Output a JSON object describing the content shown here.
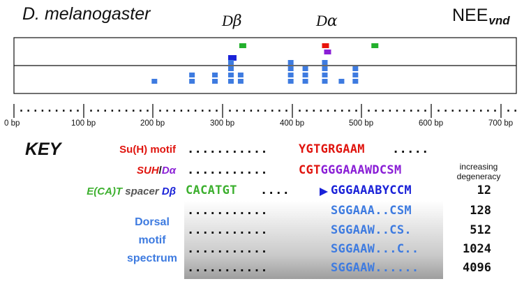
{
  "header": {
    "species": "D. melanogaster",
    "element": "NEE",
    "element_sub": "vnd",
    "d_beta": {
      "letter": "D",
      "greek": "β"
    },
    "d_alpha": {
      "letter": "D",
      "greek": "α"
    }
  },
  "sites": [
    {
      "pos": 324,
      "row": 0,
      "level": 0,
      "color": "#22b02c"
    },
    {
      "pos": 443,
      "row": 0,
      "level": 0,
      "color": "#e8140c"
    },
    {
      "pos": 514,
      "row": 0,
      "level": 0,
      "color": "#22b02c"
    },
    {
      "pos": 446,
      "row": 0,
      "level": 1,
      "color": "#8a1fd6"
    },
    {
      "pos": 308,
      "row": 0,
      "level": 2,
      "color": "#1a22d8"
    },
    {
      "pos": 198,
      "row": 1,
      "level": 3,
      "color": "#3e7be0"
    },
    {
      "pos": 252,
      "row": 1,
      "level": 2,
      "color": "#3e7be0"
    },
    {
      "pos": 252,
      "row": 1,
      "level": 3,
      "color": "#3e7be0"
    },
    {
      "pos": 285,
      "row": 1,
      "level": 2,
      "color": "#3e7be0"
    },
    {
      "pos": 285,
      "row": 1,
      "level": 3,
      "color": "#3e7be0"
    },
    {
      "pos": 308,
      "row": 1,
      "level": 0,
      "color": "#3e7be0"
    },
    {
      "pos": 308,
      "row": 1,
      "level": 1,
      "color": "#3e7be0"
    },
    {
      "pos": 308,
      "row": 1,
      "level": 2,
      "color": "#3e7be0"
    },
    {
      "pos": 308,
      "row": 1,
      "level": 3,
      "color": "#3e7be0"
    },
    {
      "pos": 322,
      "row": 1,
      "level": 2,
      "color": "#3e7be0"
    },
    {
      "pos": 322,
      "row": 1,
      "level": 3,
      "color": "#3e7be0"
    },
    {
      "pos": 394,
      "row": 1,
      "level": 0,
      "color": "#3e7be0"
    },
    {
      "pos": 394,
      "row": 1,
      "level": 1,
      "color": "#3e7be0"
    },
    {
      "pos": 394,
      "row": 1,
      "level": 2,
      "color": "#3e7be0"
    },
    {
      "pos": 394,
      "row": 1,
      "level": 3,
      "color": "#3e7be0"
    },
    {
      "pos": 415,
      "row": 1,
      "level": 1,
      "color": "#3e7be0"
    },
    {
      "pos": 415,
      "row": 1,
      "level": 2,
      "color": "#3e7be0"
    },
    {
      "pos": 415,
      "row": 1,
      "level": 3,
      "color": "#3e7be0"
    },
    {
      "pos": 443,
      "row": 1,
      "level": 0,
      "color": "#3e7be0"
    },
    {
      "pos": 443,
      "row": 1,
      "level": 1,
      "color": "#3e7be0"
    },
    {
      "pos": 443,
      "row": 1,
      "level": 2,
      "color": "#3e7be0"
    },
    {
      "pos": 443,
      "row": 1,
      "level": 3,
      "color": "#3e7be0"
    },
    {
      "pos": 467,
      "row": 1,
      "level": 3,
      "color": "#3e7be0"
    },
    {
      "pos": 487,
      "row": 1,
      "level": 1,
      "color": "#3e7be0"
    },
    {
      "pos": 487,
      "row": 1,
      "level": 2,
      "color": "#3e7be0"
    },
    {
      "pos": 487,
      "row": 1,
      "level": 3,
      "color": "#3e7be0"
    }
  ],
  "ruler": {
    "ticks": [
      "0 bp",
      "100 bp",
      "200 bp",
      "300 bp",
      "400 bp",
      "500 bp",
      "600 bp",
      "700 bp"
    ],
    "dots_segment": "........."
  },
  "key": {
    "title": "KEY",
    "degeneracy_title": [
      "increasing",
      "degeneracy"
    ],
    "rows": [
      {
        "label": "Su(H) motif",
        "dots": "...........",
        "seq": "YGTGRGAAM",
        "trail": ".....",
        "deg": ""
      },
      {
        "label_a": "SUH",
        "label_sep": "/",
        "label_b_letter": "D",
        "label_b_greek": "α",
        "dots": "...........",
        "seq_a": "CGT",
        "seq_b": "GGGAAAWDCSM",
        "deg": ""
      },
      {
        "label_a": "E(CA)T",
        "label_b": " spacer ",
        "label_c_letter": "D",
        "label_c_greek": "β",
        "spacer_seq": "CACATGT",
        "spacer_dots": "....",
        "seq": "GGGAAABYCCM",
        "deg": "12"
      },
      {
        "dots": "...........",
        "seq": "SGGAAA..CSM",
        "deg": "128"
      },
      {
        "dots": "...........",
        "seq": "SGGAAW..CS.",
        "deg": "512"
      },
      {
        "dots": "...........",
        "seq": "SGGAAW...C..",
        "deg": "1024"
      },
      {
        "dots": "...........",
        "seq": "SGGAAW......",
        "deg": "4096"
      }
    ],
    "dorsal_label": [
      "Dorsal",
      "motif",
      "spectrum"
    ]
  }
}
